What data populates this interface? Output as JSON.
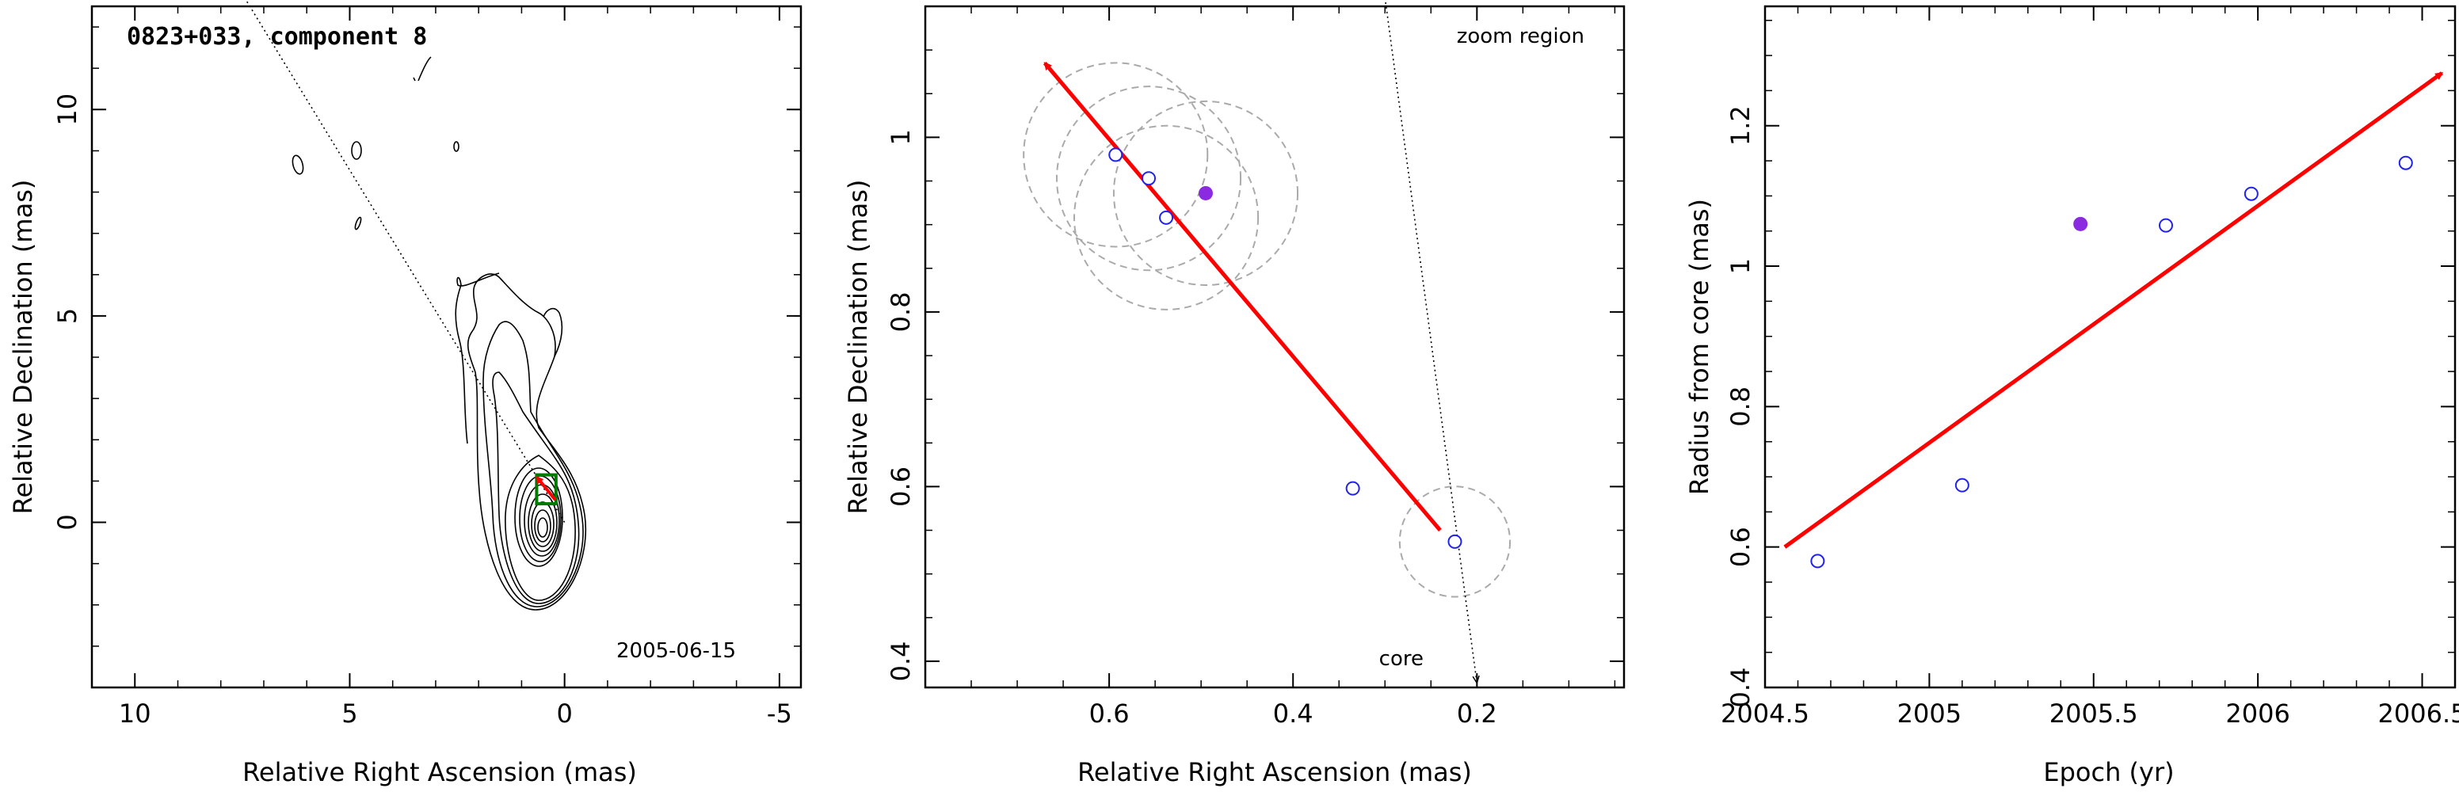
{
  "charts": [
    {
      "type": "map",
      "title": "0823+033, component 8",
      "xlabel": "Relative Right Ascension (mas)",
      "ylabel": "Relative Declination (mas)",
      "xlim": [
        11,
        -5.5
      ],
      "ylim": [
        -4,
        12.5
      ],
      "xticks": [
        10,
        5,
        0,
        -5
      ],
      "yticks": [
        0,
        5,
        10
      ],
      "annotation": "2005-06-15",
      "zoom_box": {
        "x": [
          0.2,
          0.65
        ],
        "y": [
          0.45,
          1.15
        ]
      },
      "jet_axis": {
        "from": [
          0,
          0
        ],
        "to": [
          7.5,
          12.8
        ]
      },
      "motion_arrow": {
        "from": [
          0.22,
          0.55
        ],
        "to": [
          0.65,
          1.1
        ]
      }
    },
    {
      "type": "scatter",
      "title": "",
      "label": "zoom region",
      "xlabel": "Relative Right Ascension (mas)",
      "ylabel": "Relative Declination (mas)",
      "xlim": [
        0.8,
        0.04
      ],
      "ylim": [
        0.37,
        1.15
      ],
      "xticks": [
        0.6,
        0.4,
        0.2
      ],
      "yticks": [
        0.4,
        0.6,
        0.8,
        1
      ],
      "open_points": [
        {
          "x": 0.593,
          "y": 0.98
        },
        {
          "x": 0.557,
          "y": 0.953
        },
        {
          "x": 0.538,
          "y": 0.908
        },
        {
          "x": 0.335,
          "y": 0.598
        },
        {
          "x": 0.224,
          "y": 0.537
        }
      ],
      "filled_points": [
        {
          "x": 0.495,
          "y": 0.936
        }
      ],
      "component_circles": [
        {
          "x": 0.593,
          "y": 0.98,
          "r": 0.1
        },
        {
          "x": 0.557,
          "y": 0.953,
          "r": 0.1
        },
        {
          "x": 0.538,
          "y": 0.908,
          "r": 0.1
        },
        {
          "x": 0.495,
          "y": 0.936,
          "r": 0.1
        },
        {
          "x": 0.224,
          "y": 0.537,
          "r": 0.06
        }
      ],
      "motion_arrow": {
        "from": [
          0.24,
          0.55
        ],
        "to": [
          0.67,
          1.085
        ]
      },
      "jet_axis": {
        "from": [
          0.3,
          1.16
        ],
        "to": [
          0.2,
          0.375
        ]
      },
      "core_label": "core"
    },
    {
      "type": "scatter",
      "title": "",
      "xlabel": "Epoch (yr)",
      "ylabel": "Radius from core (mas)",
      "xlim": [
        2004.5,
        2006.6
      ],
      "ylim": [
        0.4,
        1.37
      ],
      "xticks": [
        "2004.5",
        "2005",
        "2005.5",
        "2006",
        "2006.5"
      ],
      "yticks": [
        "0.4",
        "0.6",
        "0.8",
        "1",
        "1.2"
      ],
      "open_points": [
        {
          "x": 2004.66,
          "y": 0.58
        },
        {
          "x": 2005.1,
          "y": 0.688
        },
        {
          "x": 2005.72,
          "y": 1.058
        },
        {
          "x": 2005.98,
          "y": 1.103
        },
        {
          "x": 2006.45,
          "y": 1.147
        }
      ],
      "filled_points": [
        {
          "x": 2005.46,
          "y": 1.06
        }
      ],
      "fit_arrow": {
        "from": [
          2004.56,
          0.6
        ],
        "to": [
          2006.56,
          1.275
        ]
      }
    }
  ],
  "colors": {
    "arrow": "#ff0000",
    "point": "#2222ee",
    "filled_point": "#8a2be2",
    "circle": "#aaaaaa",
    "box": "#007a00"
  }
}
